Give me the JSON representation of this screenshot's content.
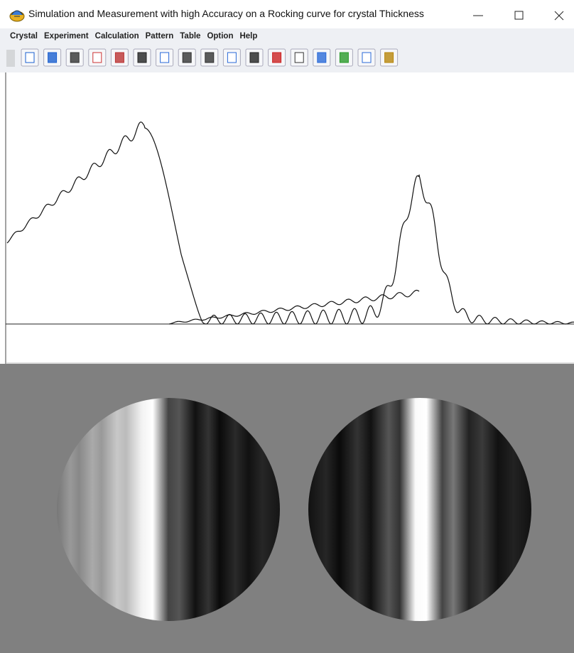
{
  "window": {
    "title": "Simulation and Measurement with high Accuracy on a Rocking curve for crystal Thickness"
  },
  "menu": [
    "Crystal",
    "Experiment",
    "Calculation",
    "Pattern",
    "Table",
    "Option",
    "Help"
  ]
}
